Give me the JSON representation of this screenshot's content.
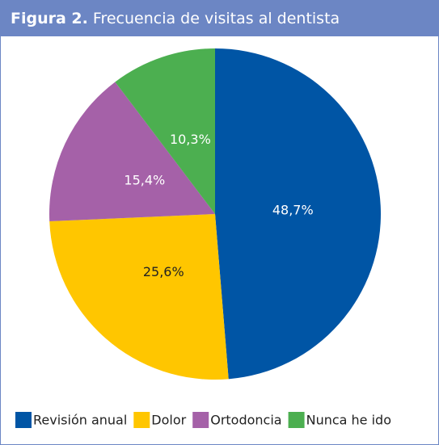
{
  "chart_data": {
    "type": "pie",
    "figure_label": "Figura 2.",
    "title": "Frecuencia de visitas al dentista",
    "categories": [
      "Revisión anual",
      "Dolor",
      "Ortodoncia",
      "Nunca he ido"
    ],
    "values": [
      48.7,
      25.6,
      15.4,
      10.3
    ],
    "value_labels": [
      "48,7%",
      "25,6%",
      "15,4%",
      "10,3%"
    ],
    "colors": [
      "#0055a5",
      "#ffc600",
      "#a561a8",
      "#4caf50"
    ],
    "legend": "bottom"
  }
}
